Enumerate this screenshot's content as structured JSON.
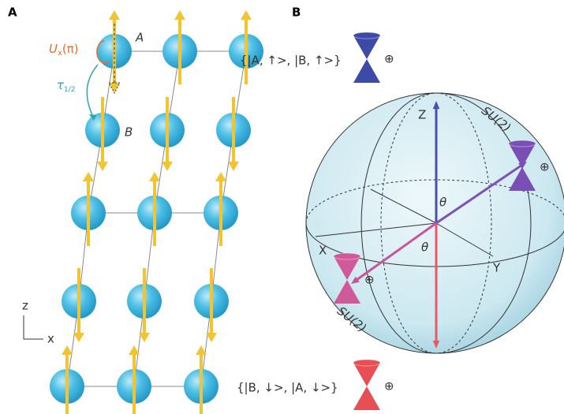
{
  "panels": {
    "a": "A",
    "b": "B"
  },
  "lattice": {
    "site_a": "A",
    "site_b": "B",
    "operator": {
      "symbol": "U",
      "subscript": "x",
      "argument": "(π)"
    },
    "translation": {
      "symbol": "τ",
      "subscript": "1/2"
    },
    "axes": {
      "vertical": "z",
      "horizontal": "x"
    }
  },
  "bloch_sphere": {
    "axes": {
      "z": "Z",
      "x": "X",
      "y": "Y"
    },
    "angles": [
      "θ",
      "θ"
    ],
    "symmetry_labels": [
      "SU(2)",
      "SU(2)"
    ],
    "states": {
      "up": "{|A, ↑>, |B, ↑>}",
      "down": "{|B, ↓>, |A, ↓>}"
    },
    "cone_marks": [
      "⊕",
      "⊕",
      "⊕",
      "⊕"
    ]
  }
}
